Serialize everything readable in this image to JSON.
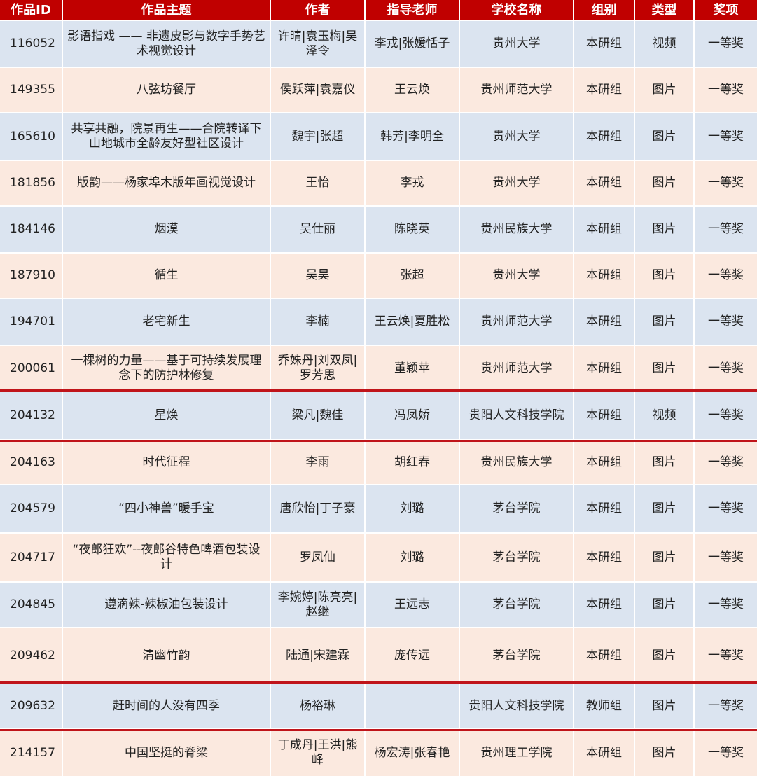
{
  "colors": {
    "header": "#c00000",
    "row_blue": "#dbe4f0",
    "row_peach": "#fbe9df",
    "highlight": "#c0141a"
  },
  "headers": [
    "作品ID",
    "作品主题",
    "作者",
    "指导老师",
    "学校名称",
    "组别",
    "类型",
    "奖项"
  ],
  "rows": [
    {
      "cells": [
        "116052",
        "影语指戏 —— 非遗皮影与数字手势艺术视觉设计",
        "许晴|袁玉梅|吴泽令",
        "李戎|张媛恬子",
        "贵州大学",
        "本研组",
        "视频",
        "一等奖"
      ],
      "highlighted": false
    },
    {
      "cells": [
        "149355",
        "八弦坊餐厅",
        "侯跃萍|袁嘉仪",
        "王云焕",
        "贵州师范大学",
        "本研组",
        "图片",
        "一等奖"
      ],
      "highlighted": false
    },
    {
      "cells": [
        "165610",
        "共享共融，院景再生——合院转译下山地城市全龄友好型社区设计",
        "魏宇|张超",
        "韩芳|李明全",
        "贵州大学",
        "本研组",
        "图片",
        "一等奖"
      ],
      "highlighted": false
    },
    {
      "cells": [
        "181856",
        "版韵——杨家埠木版年画视觉设计",
        "王怡",
        "李戎",
        "贵州大学",
        "本研组",
        "图片",
        "一等奖"
      ],
      "highlighted": false
    },
    {
      "cells": [
        "184146",
        "烟漠",
        "吴仕丽",
        "陈晓英",
        "贵州民族大学",
        "本研组",
        "图片",
        "一等奖"
      ],
      "highlighted": false
    },
    {
      "cells": [
        "187910",
        "循生",
        "吴昊",
        "张超",
        "贵州大学",
        "本研组",
        "图片",
        "一等奖"
      ],
      "highlighted": false
    },
    {
      "cells": [
        "194701",
        "老宅新生",
        "李楠",
        "王云焕|夏胜松",
        "贵州师范大学",
        "本研组",
        "图片",
        "一等奖"
      ],
      "highlighted": false
    },
    {
      "cells": [
        "200061",
        "一棵树的力量——基于可持续发展理念下的防护林修复",
        "乔姝丹|刘双凤|罗芳思",
        "董颖苹",
        "贵州师范大学",
        "本研组",
        "图片",
        "一等奖"
      ],
      "highlighted": false
    },
    {
      "cells": [
        "204132",
        "星焕",
        "梁凡|魏佳",
        "冯凤娇",
        "贵阳人文科技学院",
        "本研组",
        "视频",
        "一等奖"
      ],
      "highlighted": true
    },
    {
      "cells": [
        "204163",
        "时代征程",
        "李雨",
        "胡红春",
        "贵州民族大学",
        "本研组",
        "图片",
        "一等奖"
      ],
      "highlighted": false
    },
    {
      "cells": [
        "204579",
        "“四小神兽”暖手宝",
        "唐欣怡|丁子豪",
        "刘璐",
        "茅台学院",
        "本研组",
        "图片",
        "一等奖"
      ],
      "highlighted": false
    },
    {
      "cells": [
        "204717",
        "“夜郎狂欢”--夜郎谷特色啤酒包装设计",
        "罗凤仙",
        "刘璐",
        "茅台学院",
        "本研组",
        "图片",
        "一等奖"
      ],
      "highlighted": false
    },
    {
      "cells": [
        "204845",
        "遵滴辣-辣椒油包装设计",
        "李婉婷|陈亮亮|赵继",
        "王远志",
        "茅台学院",
        "本研组",
        "图片",
        "一等奖"
      ],
      "highlighted": false
    },
    {
      "cells": [
        "209462",
        "清幽竹韵",
        "陆通|宋建霖",
        "庞传远",
        "茅台学院",
        "本研组",
        "图片",
        "一等奖"
      ],
      "highlighted": false
    },
    {
      "cells": [
        "209632",
        "赶时间的人没有四季",
        "杨裕琳",
        "",
        "贵阳人文科技学院",
        "教师组",
        "图片",
        "一等奖"
      ],
      "highlighted": true
    },
    {
      "cells": [
        "214157",
        "中国坚挺的脊梁",
        "丁成丹|王洪|熊峰",
        "杨宏涛|张春艳",
        "贵州理工学院",
        "本研组",
        "图片",
        "一等奖"
      ],
      "highlighted": false
    }
  ]
}
